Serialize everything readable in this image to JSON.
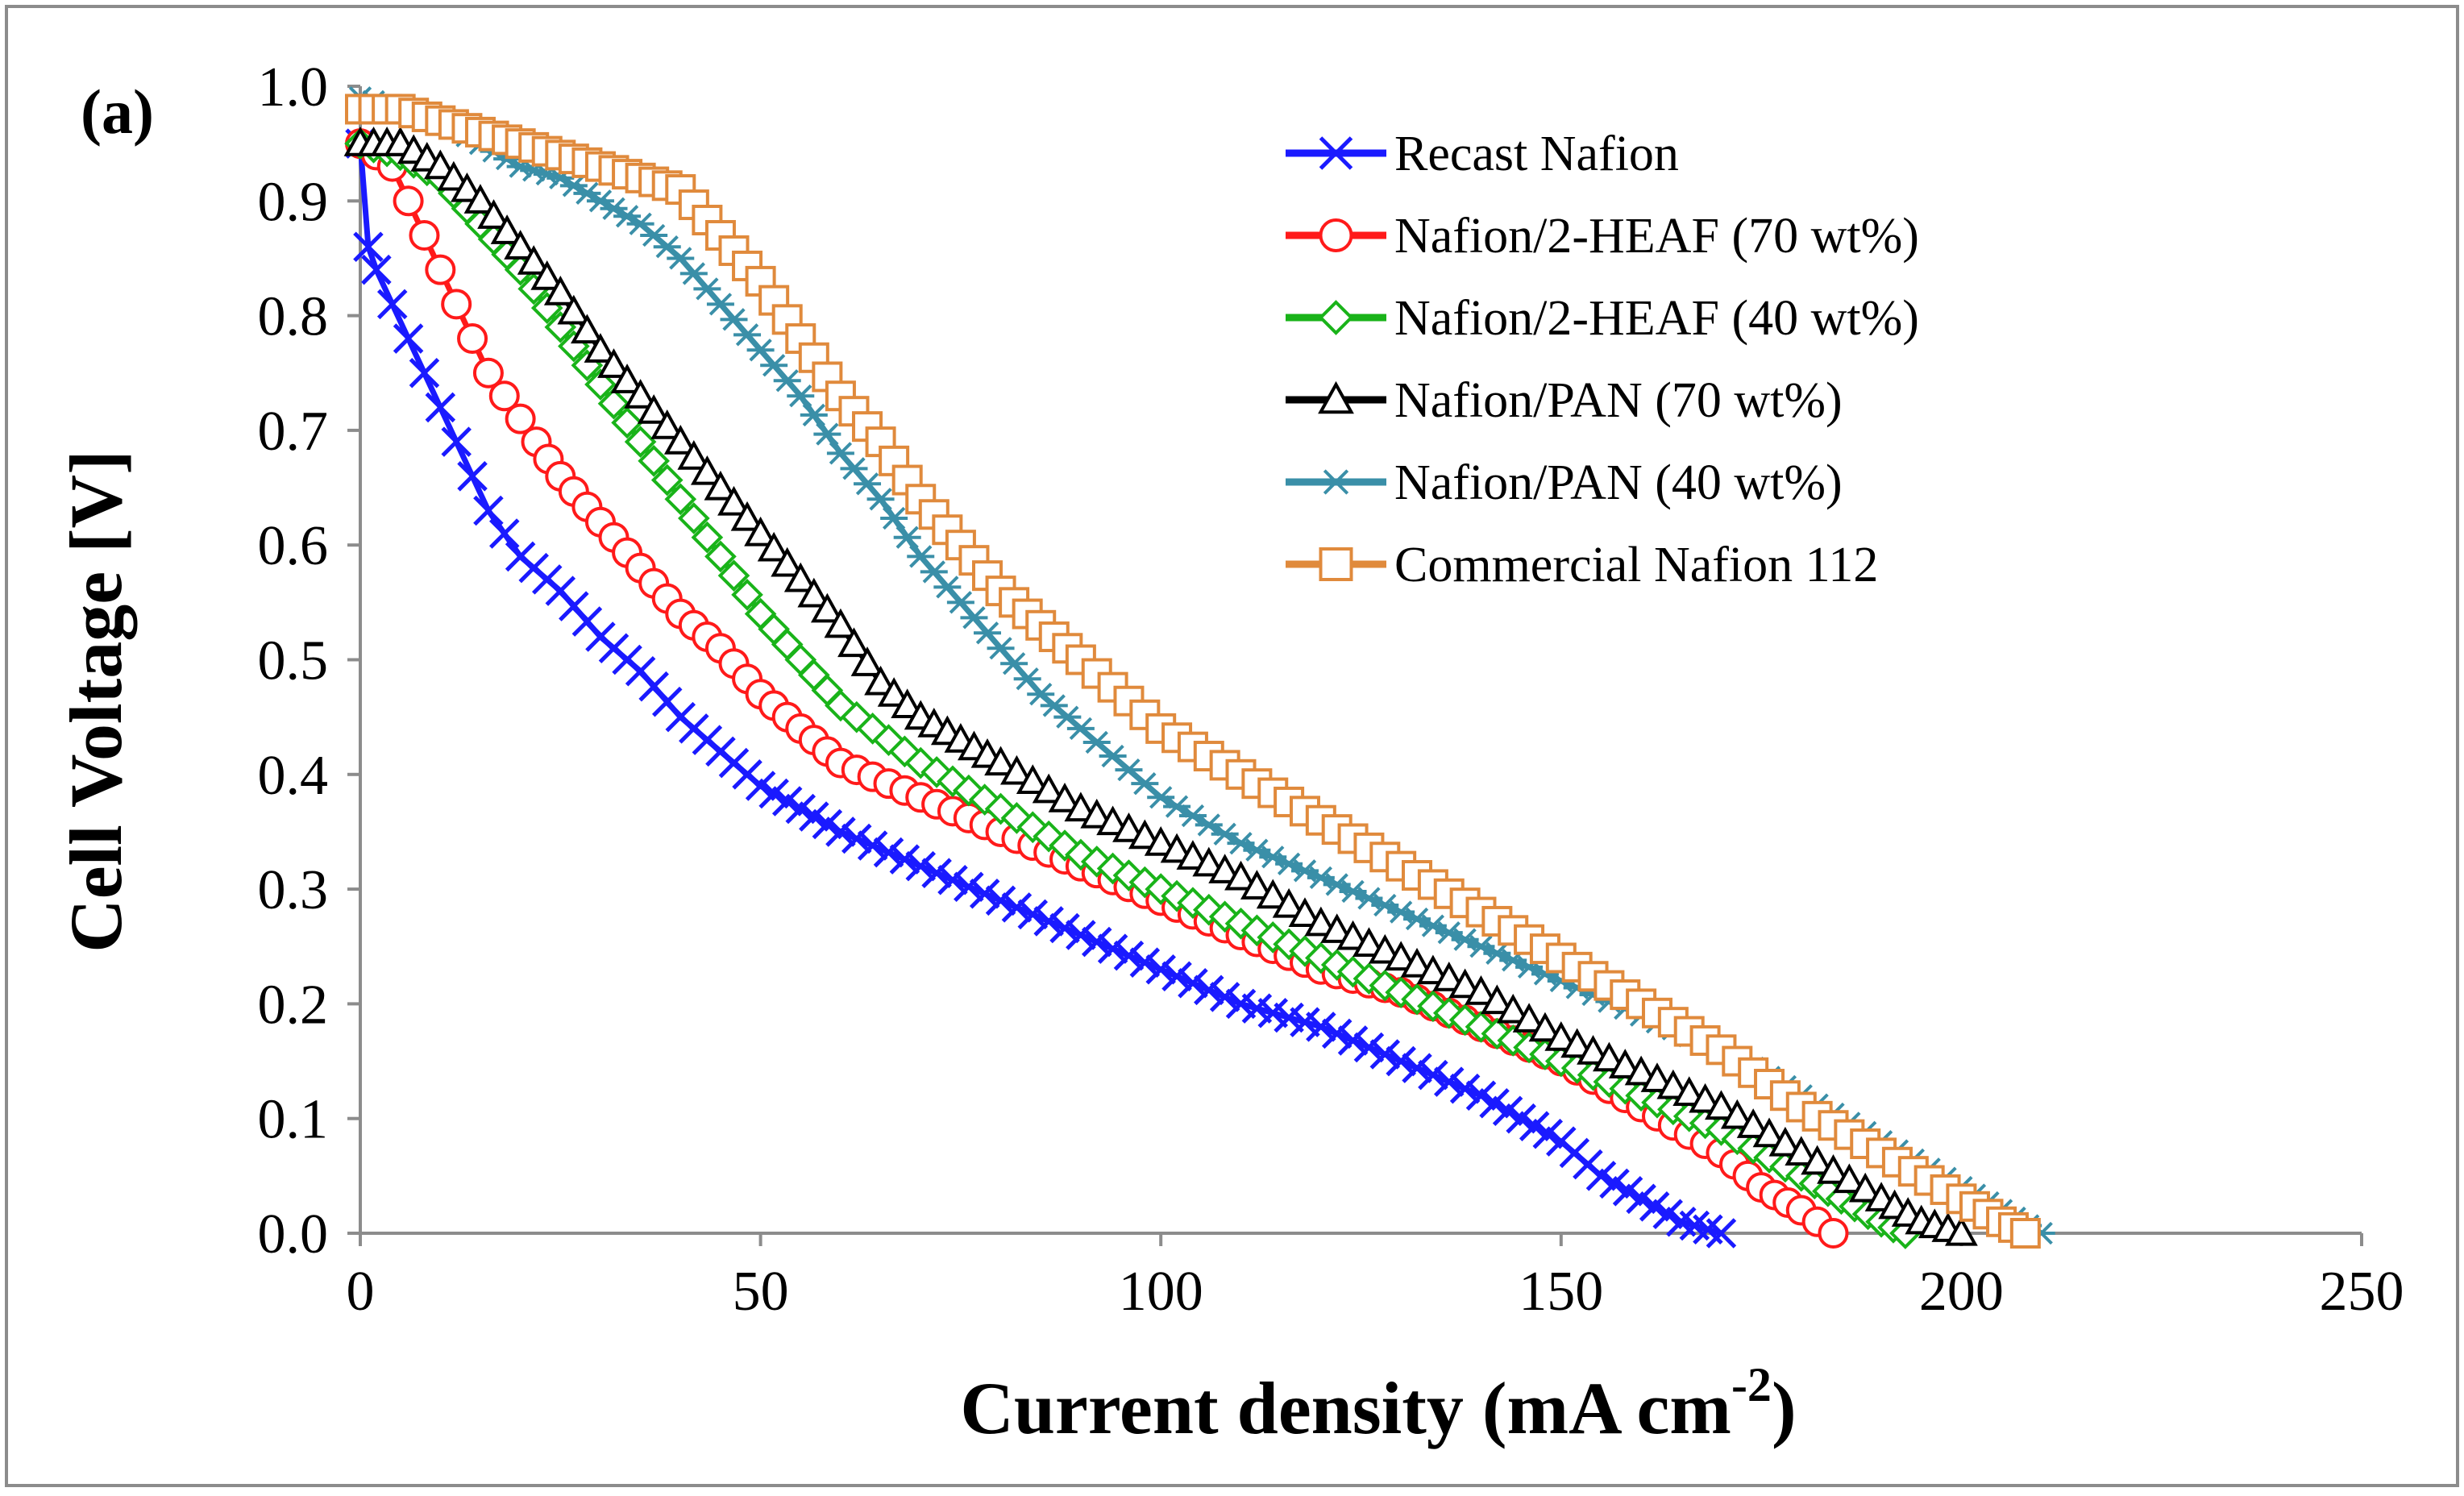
{
  "chart_data": {
    "type": "line",
    "panel_label": "(a)",
    "xlabel": "Current density (mA cm",
    "xlabel_superscript": "-2",
    "xlabel_suffix": ")",
    "ylabel": "Cell Voltage [V]",
    "xlim": [
      0,
      250
    ],
    "ylim": [
      0.0,
      1.0
    ],
    "xticks": [
      0,
      50,
      100,
      150,
      200,
      250
    ],
    "yticks": [
      0.0,
      0.1,
      0.2,
      0.3,
      0.4,
      0.5,
      0.6,
      0.7,
      0.8,
      0.9,
      1.0
    ],
    "xtick_labels": [
      "0",
      "50",
      "100",
      "150",
      "200",
      "250"
    ],
    "ytick_labels": [
      "0.0",
      "0.1",
      "0.2",
      "0.3",
      "0.4",
      "0.5",
      "0.6",
      "0.7",
      "0.8",
      "0.9",
      "1.0"
    ],
    "grid": false,
    "legend_position": "top-right",
    "series": [
      {
        "name": "Recast Nafion",
        "color": "#1a1aff",
        "marker": "x-cross",
        "x": [
          0,
          1,
          2,
          4,
          6,
          8,
          10,
          12,
          14,
          16,
          18,
          20,
          25,
          30,
          35,
          40,
          45,
          50,
          55,
          60,
          70,
          80,
          90,
          100,
          110,
          120,
          130,
          140,
          145,
          150,
          155,
          160,
          165,
          170
        ],
        "y": [
          0.95,
          0.86,
          0.84,
          0.81,
          0.78,
          0.75,
          0.72,
          0.69,
          0.66,
          0.63,
          0.61,
          0.59,
          0.56,
          0.52,
          0.49,
          0.45,
          0.42,
          0.39,
          0.37,
          0.35,
          0.32,
          0.29,
          0.26,
          0.23,
          0.2,
          0.18,
          0.15,
          0.12,
          0.1,
          0.08,
          0.05,
          0.03,
          0.01,
          0.0
        ]
      },
      {
        "name": "Nafion/2-HEAF (70 wt%)",
        "color": "#ff1a1a",
        "marker": "circle",
        "x": [
          0,
          2,
          4,
          6,
          8,
          10,
          12,
          14,
          16,
          18,
          20,
          22,
          25,
          30,
          35,
          40,
          45,
          50,
          55,
          60,
          70,
          80,
          90,
          100,
          110,
          120,
          130,
          140,
          150,
          160,
          170,
          175,
          180,
          184
        ],
        "y": [
          0.95,
          0.94,
          0.93,
          0.9,
          0.87,
          0.84,
          0.81,
          0.78,
          0.75,
          0.73,
          0.71,
          0.69,
          0.66,
          0.62,
          0.58,
          0.54,
          0.51,
          0.47,
          0.44,
          0.41,
          0.38,
          0.35,
          0.32,
          0.29,
          0.26,
          0.23,
          0.21,
          0.18,
          0.15,
          0.11,
          0.07,
          0.04,
          0.02,
          0.0
        ]
      },
      {
        "name": "Nafion/2-HEAF (40 wt%)",
        "color": "#19b319",
        "marker": "diamond",
        "x": [
          0,
          5,
          10,
          15,
          20,
          25,
          30,
          35,
          40,
          45,
          50,
          55,
          60,
          70,
          80,
          90,
          100,
          110,
          120,
          130,
          140,
          150,
          160,
          170,
          180,
          185,
          190,
          193
        ],
        "y": [
          0.95,
          0.94,
          0.92,
          0.88,
          0.84,
          0.79,
          0.74,
          0.69,
          0.64,
          0.59,
          0.54,
          0.5,
          0.46,
          0.41,
          0.37,
          0.33,
          0.3,
          0.27,
          0.24,
          0.21,
          0.18,
          0.15,
          0.12,
          0.09,
          0.05,
          0.03,
          0.01,
          0.0
        ]
      },
      {
        "name": "Nafion/PAN (70 wt%)",
        "color": "#000000",
        "marker": "triangle",
        "x": [
          0,
          5,
          10,
          15,
          20,
          25,
          30,
          35,
          40,
          45,
          50,
          55,
          60,
          65,
          70,
          75,
          80,
          90,
          100,
          110,
          120,
          130,
          140,
          150,
          160,
          170,
          180,
          190,
          195,
          200
        ],
        "y": [
          0.95,
          0.95,
          0.93,
          0.9,
          0.86,
          0.82,
          0.77,
          0.73,
          0.69,
          0.65,
          0.61,
          0.57,
          0.53,
          0.48,
          0.45,
          0.43,
          0.41,
          0.37,
          0.34,
          0.31,
          0.27,
          0.24,
          0.21,
          0.17,
          0.14,
          0.11,
          0.07,
          0.03,
          0.01,
          0.0
        ]
      },
      {
        "name": "Nafion/PAN (40 wt%)",
        "color": "#3a8fa8",
        "marker": "asterisk",
        "x": [
          0,
          5,
          10,
          15,
          20,
          25,
          30,
          35,
          40,
          45,
          50,
          55,
          60,
          65,
          70,
          75,
          80,
          85,
          90,
          100,
          110,
          120,
          130,
          140,
          150,
          160,
          170,
          180,
          190,
          200,
          205,
          210
        ],
        "y": [
          0.99,
          0.98,
          0.97,
          0.95,
          0.93,
          0.92,
          0.9,
          0.88,
          0.85,
          0.81,
          0.77,
          0.73,
          0.68,
          0.64,
          0.59,
          0.55,
          0.51,
          0.47,
          0.44,
          0.38,
          0.34,
          0.31,
          0.28,
          0.25,
          0.22,
          0.19,
          0.16,
          0.12,
          0.08,
          0.04,
          0.02,
          0.0
        ]
      },
      {
        "name": "Commercial Nafion 112",
        "color": "#e08a3c",
        "marker": "square",
        "x": [
          0,
          5,
          10,
          15,
          20,
          25,
          30,
          35,
          40,
          45,
          50,
          55,
          60,
          65,
          70,
          75,
          80,
          85,
          90,
          100,
          110,
          120,
          130,
          140,
          150,
          160,
          170,
          180,
          190,
          200,
          205,
          208
        ],
        "y": [
          0.98,
          0.98,
          0.97,
          0.96,
          0.95,
          0.94,
          0.93,
          0.92,
          0.91,
          0.87,
          0.83,
          0.78,
          0.73,
          0.69,
          0.64,
          0.6,
          0.56,
          0.53,
          0.5,
          0.44,
          0.4,
          0.36,
          0.32,
          0.28,
          0.24,
          0.2,
          0.16,
          0.11,
          0.07,
          0.03,
          0.01,
          0.0
        ]
      }
    ]
  }
}
